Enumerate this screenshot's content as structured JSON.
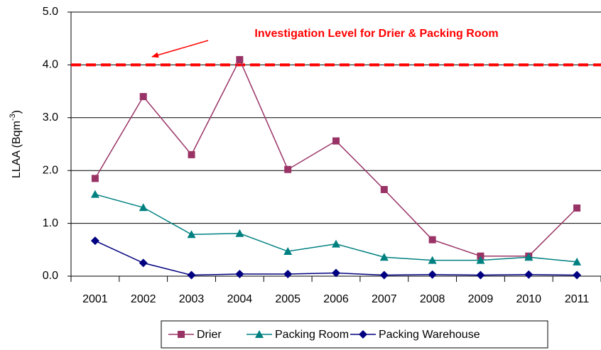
{
  "chart_data": {
    "type": "line",
    "y_label": {
      "main": "LLAA (Bqm",
      "sup": "-3",
      "end": ")"
    },
    "categories": [
      "2001",
      "2002",
      "2003",
      "2004",
      "2005",
      "2006",
      "2007",
      "2008",
      "2009",
      "2010",
      "2011"
    ],
    "series": [
      {
        "name": "Drier",
        "color": "#993366",
        "marker": "square",
        "values": [
          1.85,
          3.4,
          2.3,
          4.1,
          2.02,
          2.56,
          1.64,
          0.69,
          0.38,
          0.38,
          1.29
        ]
      },
      {
        "name": "Packing Room",
        "color": "#008080",
        "marker": "triangle",
        "values": [
          1.55,
          1.3,
          0.79,
          0.81,
          0.47,
          0.61,
          0.36,
          0.3,
          0.3,
          0.36,
          0.27
        ]
      },
      {
        "name": "Packing Warehouse",
        "color": "#000080",
        "marker": "diamond",
        "values": [
          0.67,
          0.25,
          0.02,
          0.04,
          0.04,
          0.06,
          0.02,
          0.03,
          0.02,
          0.03,
          0.02
        ]
      }
    ],
    "reference_line": {
      "value": 4,
      "color": "#ff0000",
      "label": "Investigation Level for Drier & Packing Room"
    },
    "ylim": [
      0,
      5
    ],
    "yticks": [
      {
        "value": 0,
        "label": "0.0"
      },
      {
        "value": 1,
        "label": "1.0"
      },
      {
        "value": 2,
        "label": "2.0"
      },
      {
        "value": 3,
        "label": "3.0"
      },
      {
        "value": 4,
        "label": "4.0"
      },
      {
        "value": 5,
        "label": "5.0"
      }
    ],
    "grid": true,
    "legend": "bottom"
  }
}
